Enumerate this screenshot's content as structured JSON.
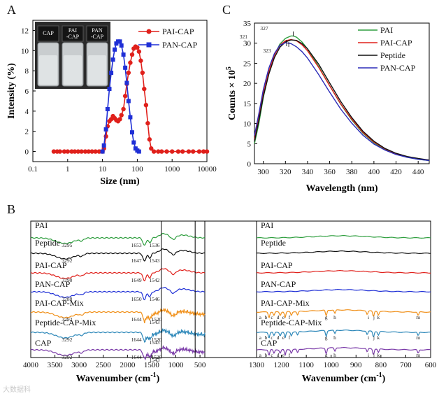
{
  "panels": {
    "A": "A",
    "B": "B",
    "C": "C"
  },
  "watermark": "大数据科",
  "charts": {
    "A": {
      "type": "line",
      "xlabel": "Size (nm)",
      "ylabel": "Intensity (%)",
      "xscale": "log",
      "xlim": [
        0.1,
        10000
      ],
      "ylim": [
        -1,
        13
      ],
      "xticks": [
        "0.1",
        "1",
        "10",
        "100",
        "1000",
        "10000"
      ],
      "yticks": [
        "0",
        "2",
        "4",
        "6",
        "8",
        "10",
        "12"
      ],
      "legend_position": "top-right",
      "inset": {
        "vials": [
          "CAP",
          "PAI\n-CAP",
          "PAN\n-CAP"
        ]
      },
      "series": [
        {
          "name": "PAI-CAP",
          "color": "#e0201b",
          "marker": "circle",
          "x": [
            0.4,
            0.5,
            0.6,
            0.8,
            1,
            1.3,
            1.6,
            2,
            2.5,
            3.2,
            4,
            5,
            6.3,
            8,
            10,
            11,
            12.6,
            14,
            15.8,
            17.8,
            20,
            22.4,
            25,
            28,
            31.6,
            35,
            40,
            45,
            50,
            56,
            63,
            71,
            79,
            89,
            100,
            112,
            126,
            141,
            158,
            178,
            200,
            224,
            251,
            300,
            400,
            500,
            700,
            1000,
            1500,
            2000,
            3000,
            4000,
            6000,
            8000,
            10000
          ],
          "y": [
            0,
            0,
            0,
            0,
            0,
            0,
            0,
            0,
            0,
            0,
            0,
            0,
            0,
            0,
            0,
            0.3,
            1.5,
            2.5,
            3.0,
            3.2,
            3.5,
            3.3,
            3.1,
            3.0,
            3.2,
            3.6,
            4.2,
            5.5,
            6.7,
            7.8,
            8.8,
            9.6,
            10.2,
            10.4,
            10.3,
            9.9,
            9.0,
            7.8,
            6.2,
            4.6,
            2.8,
            1.2,
            0.3,
            0,
            0,
            0,
            0,
            0,
            0,
            0,
            0,
            0,
            0,
            0,
            0
          ]
        },
        {
          "name": "PAN-CAP",
          "color": "#1f2fd6",
          "marker": "square",
          "x": [
            10,
            11,
            12.6,
            14,
            15.8,
            17.8,
            20,
            22.4,
            25,
            28,
            31.6,
            35,
            40,
            45,
            50,
            56,
            63,
            71,
            79,
            89,
            100,
            112
          ],
          "y": [
            0,
            0.6,
            2.2,
            4.2,
            6.2,
            7.8,
            9.1,
            10.1,
            10.7,
            10.9,
            10.9,
            10.5,
            9.6,
            8.3,
            6.8,
            5.0,
            3.4,
            1.9,
            0.9,
            0.3,
            0.1,
            0
          ]
        }
      ]
    },
    "C": {
      "type": "line",
      "xlabel": "Wavelength (nm)",
      "ylabel_main": "Counts × 10",
      "ylabel_exp": "5",
      "xlim": [
        292,
        450
      ],
      "ylim": [
        0,
        35
      ],
      "xticks": [
        "300",
        "320",
        "340",
        "360",
        "380",
        "400",
        "420",
        "440"
      ],
      "yticks": [
        "0",
        "5",
        "10",
        "15",
        "20",
        "25",
        "30",
        "35"
      ],
      "legend_position": "top-right",
      "annotations": [
        {
          "text": "327"
        },
        {
          "text": "321"
        },
        {
          "text": "323"
        }
      ],
      "series": [
        {
          "name": "PAI",
          "color": "#2e9e3e",
          "x": [
            292,
            296,
            300,
            305,
            310,
            315,
            320,
            325,
            327,
            330,
            335,
            340,
            350,
            360,
            370,
            380,
            390,
            400,
            410,
            420,
            430,
            440,
            450
          ],
          "y": [
            5,
            10,
            16.5,
            22.5,
            27,
            29.8,
            31.2,
            31.8,
            31.8,
            31.5,
            30.3,
            28.6,
            24.2,
            19.4,
            14.8,
            10.9,
            7.6,
            5.2,
            3.5,
            2.4,
            1.6,
            1.1,
            0.8
          ]
        },
        {
          "name": "PAI-CAP",
          "color": "#e0201b",
          "x": [
            292,
            296,
            300,
            305,
            310,
            315,
            320,
            325,
            330,
            335,
            340,
            350,
            360,
            370,
            380,
            390,
            400,
            410,
            420,
            430,
            440,
            450
          ],
          "y": [
            6,
            11.5,
            17.5,
            23,
            27,
            29.5,
            30.6,
            30.9,
            30.6,
            29.6,
            28.1,
            24,
            19.4,
            14.9,
            11.1,
            7.8,
            5.4,
            3.7,
            2.5,
            1.7,
            1.2,
            0.9
          ]
        },
        {
          "name": "Peptide",
          "color": "#111111",
          "x": [
            292,
            296,
            300,
            305,
            310,
            315,
            320,
            325,
            330,
            335,
            340,
            350,
            360,
            370,
            380,
            390,
            400,
            410,
            420,
            430,
            440,
            450
          ],
          "y": [
            5.5,
            10.8,
            16.8,
            22.3,
            26.4,
            29,
            30.3,
            30.8,
            30.7,
            29.9,
            28.6,
            24.8,
            20.1,
            15.5,
            11.5,
            8.1,
            5.6,
            3.8,
            2.6,
            1.8,
            1.3,
            0.9
          ]
        },
        {
          "name": "PAN-CAP",
          "color": "#2b2bb8",
          "x": [
            292,
            296,
            300,
            305,
            310,
            315,
            320,
            325,
            330,
            335,
            340,
            350,
            360,
            370,
            380,
            390,
            400,
            410,
            420,
            430,
            440,
            450
          ],
          "y": [
            7,
            12.5,
            18.5,
            23.8,
            27.4,
            29.5,
            30.1,
            29.9,
            29.1,
            27.9,
            26.3,
            22.2,
            17.8,
            13.6,
            10.1,
            7.1,
            4.9,
            3.4,
            2.3,
            1.6,
            1.1,
            0.8
          ]
        }
      ]
    },
    "B_left": {
      "type": "line",
      "xlabel_main": "Wavenumber (cm",
      "xlabel_exp": "-1",
      "xlabel_end": ")",
      "xlim": [
        4000,
        400
      ],
      "xticks": [
        "4000",
        "3500",
        "3000",
        "2500",
        "2000",
        "1500",
        "1000",
        "500"
      ],
      "series": [
        {
          "name": "PAI",
          "color": "#2e9e3e",
          "peaks": [
            "3295",
            "1653",
            "1536"
          ]
        },
        {
          "name": "Peptide",
          "color": "#111111",
          "peaks": [
            "3292",
            "1647",
            "1543"
          ]
        },
        {
          "name": "PAI-CAP",
          "color": "#e0201b",
          "peaks": [
            "3290",
            "1649",
            "1542"
          ]
        },
        {
          "name": "PAN-CAP",
          "color": "#1f2fd6",
          "peaks": [
            "3288",
            "1650",
            "1546"
          ]
        },
        {
          "name": "PAI-CAP-Mix",
          "color": "#f0901a",
          "peaks": [
            "3292",
            "1644",
            "1543",
            "1520"
          ]
        },
        {
          "name": "Peptide-CAP-Mix",
          "color": "#2a86b8",
          "peaks": [
            "3292",
            "1644",
            "1543",
            "1520"
          ]
        },
        {
          "name": "CAP",
          "color": "#7a3aa8",
          "peaks": [
            "3292",
            "1644",
            "1543",
            "1520"
          ]
        }
      ]
    },
    "B_right": {
      "type": "line",
      "xlabel_main": "Wavenumber (cm",
      "xlabel_exp": "-1",
      "xlabel_end": ")",
      "xlim": [
        1300,
        600
      ],
      "xticks": [
        "1300",
        "1200",
        "1100",
        "1000",
        "900",
        "800",
        "700",
        "600"
      ],
      "series": [
        {
          "name": "PAI",
          "color": "#2e9e3e",
          "letters": []
        },
        {
          "name": "Peptide",
          "color": "#111111",
          "letters": []
        },
        {
          "name": "PAI-CAP",
          "color": "#e0201b",
          "letters": []
        },
        {
          "name": "PAN-CAP",
          "color": "#1f2fd6",
          "letters": []
        },
        {
          "name": "PAI-CAP-Mix",
          "color": "#f0901a",
          "letters": [
            "a",
            "b",
            "c",
            "d",
            "e",
            "f",
            "g",
            "h",
            "i",
            "j",
            "k",
            "m"
          ]
        },
        {
          "name": "Peptide-CAP-Mix",
          "color": "#2a86b8",
          "letters": [
            "a",
            "b",
            "c",
            "d",
            "e",
            "f",
            "g",
            "h",
            "i",
            "j",
            "k",
            "m"
          ]
        },
        {
          "name": "CAP",
          "color": "#7a3aa8",
          "letters": [
            "a",
            "b",
            "c",
            "d",
            "e",
            "f",
            "g",
            "h",
            "i",
            "j",
            "k",
            "m"
          ]
        }
      ]
    }
  }
}
